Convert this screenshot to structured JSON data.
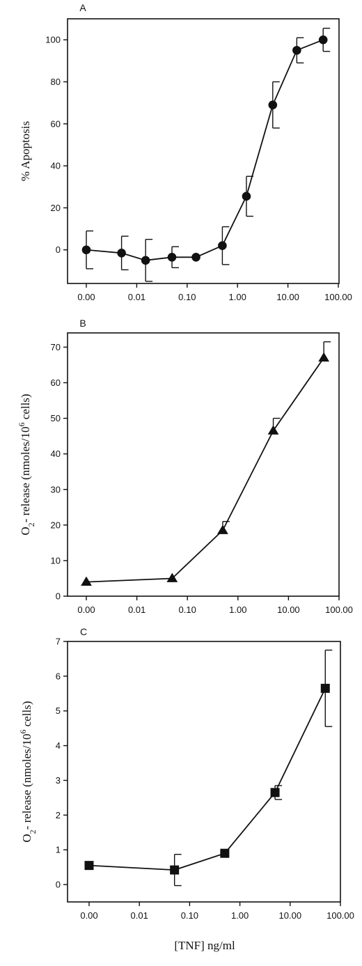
{
  "chart_data": [
    {
      "type": "line",
      "panel": "A",
      "xscale": "log",
      "x_tick_labels": [
        "0.00",
        "0.01",
        "0.10",
        "1.00",
        "10.00",
        "100.00"
      ],
      "ylabel": "% Apoptosis",
      "ylim": [
        -16,
        110
      ],
      "y_ticks": [
        0,
        20,
        40,
        60,
        80,
        100
      ],
      "marker": "circle",
      "series": [
        {
          "x": [
            0.001,
            0.005,
            0.015,
            0.05,
            0.15,
            0.5,
            1.5,
            5,
            15,
            50
          ],
          "y": [
            0,
            -1.5,
            -5,
            -3.5,
            -3.5,
            2,
            25.5,
            69,
            95,
            100
          ],
          "err": [
            9,
            8,
            10,
            5,
            0,
            9,
            9.5,
            11,
            6,
            5.5
          ]
        }
      ]
    },
    {
      "type": "line",
      "panel": "B",
      "xscale": "log",
      "x_tick_labels": [
        "0.00",
        "0.01",
        "0.10",
        "1.00",
        "10.00",
        "100.00"
      ],
      "ylabel_parts": [
        "O",
        "2",
        "- release (nmoles/10",
        "6",
        " cells)"
      ],
      "ylim": [
        0,
        74
      ],
      "y_ticks": [
        0,
        10,
        20,
        30,
        40,
        50,
        60,
        70
      ],
      "marker": "triangle",
      "series": [
        {
          "x": [
            0.001,
            0.05,
            0.5,
            5,
            50
          ],
          "y": [
            4,
            5,
            18.5,
            46.5,
            67
          ],
          "err": [
            0,
            0,
            2.5,
            3.5,
            4.5
          ]
        }
      ]
    },
    {
      "type": "line",
      "panel": "C",
      "xscale": "log",
      "x_tick_labels": [
        "0.00",
        "0.01",
        "0.10",
        "1.00",
        "10.00",
        "100.00"
      ],
      "ylabel_parts": [
        "O",
        "2",
        "- release (nmoles/10",
        "6",
        " cells)"
      ],
      "xlabel": "[TNF] ng/ml",
      "ylim": [
        -0.5,
        7
      ],
      "y_ticks": [
        0,
        1,
        2,
        3,
        4,
        5,
        6,
        7
      ],
      "marker": "square",
      "series": [
        {
          "x": [
            0.001,
            0.05,
            0.5,
            5,
            50
          ],
          "y": [
            0.55,
            0.42,
            0.9,
            2.65,
            5.65
          ],
          "err": [
            0,
            0.45,
            0,
            0.2,
            1.1
          ]
        }
      ]
    }
  ]
}
